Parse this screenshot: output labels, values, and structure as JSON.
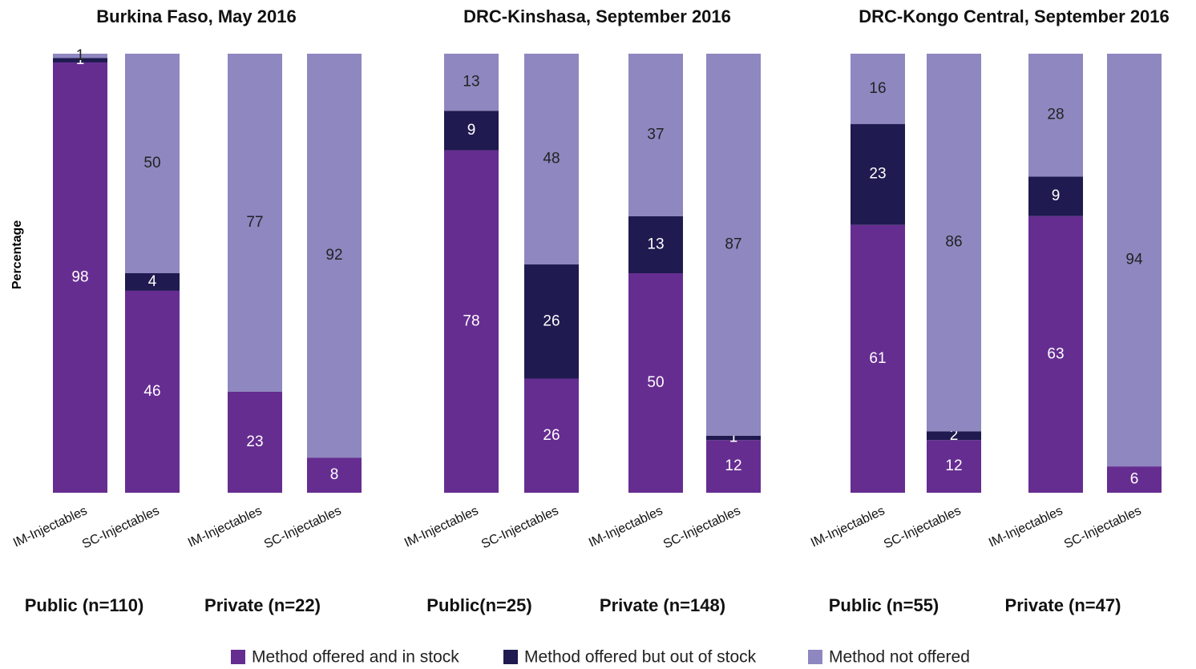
{
  "y_label": "Percentage",
  "legend": [
    {
      "name": "Method offered and in stock",
      "color": "#662d91"
    },
    {
      "name": "Method offered but out of stock",
      "color": "#1f1a4f"
    },
    {
      "name": "Method not offered",
      "color": "#8e87c0"
    }
  ],
  "chart_data": [
    {
      "type": "bar",
      "stacked": true,
      "title": "Burkina Faso, May 2016",
      "categories": [
        "IM-Injectables",
        "SC-Injectables",
        "IM-Injectables",
        "SC-Injectables"
      ],
      "groups": [
        "Public (n=110)",
        "Private (n=22)"
      ],
      "ylim": [
        0,
        100
      ],
      "series": [
        {
          "color": "#662d91",
          "values": [
            98,
            46,
            23,
            8
          ]
        },
        {
          "color": "#1f1a4f",
          "values": [
            1,
            4,
            0,
            0
          ]
        },
        {
          "color": "#8e87c0",
          "values": [
            1,
            50,
            77,
            92
          ]
        }
      ]
    },
    {
      "type": "bar",
      "stacked": true,
      "title": "DRC-Kinshasa, September 2016",
      "categories": [
        "IM-Injectables",
        "SC-Injectables",
        "IM-Injectables",
        "SC-Injectables"
      ],
      "groups": [
        "Public(n=25)",
        "Private (n=148)"
      ],
      "ylim": [
        0,
        100
      ],
      "series": [
        {
          "color": "#662d91",
          "values": [
            78,
            26,
            50,
            12
          ]
        },
        {
          "color": "#1f1a4f",
          "values": [
            9,
            26,
            13,
            1
          ]
        },
        {
          "color": "#8e87c0",
          "values": [
            13,
            48,
            37,
            87
          ]
        }
      ]
    },
    {
      "type": "bar",
      "stacked": true,
      "title": "DRC-Kongo Central, September 2016",
      "categories": [
        "IM-Injectables",
        "SC-Injectables",
        "IM-Injectables",
        "SC-Injectables"
      ],
      "groups": [
        "Public (n=55)",
        "Private (n=47)"
      ],
      "ylim": [
        0,
        100
      ],
      "series": [
        {
          "color": "#662d91",
          "values": [
            61,
            12,
            63,
            6
          ]
        },
        {
          "color": "#1f1a4f",
          "values": [
            23,
            2,
            9,
            0
          ]
        },
        {
          "color": "#8e87c0",
          "values": [
            16,
            86,
            28,
            94
          ]
        }
      ]
    }
  ]
}
